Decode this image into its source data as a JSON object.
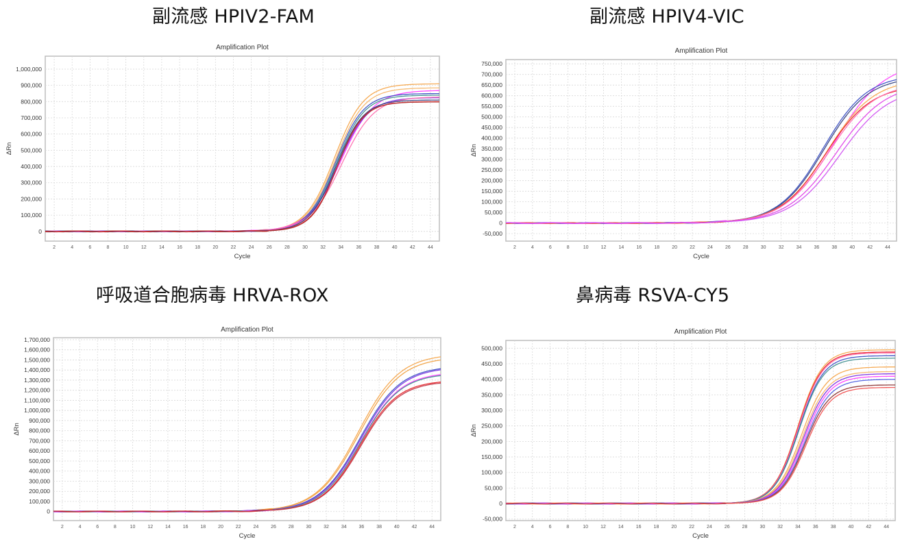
{
  "headings": [
    {
      "text": "副流感 HPIV2-FAM"
    },
    {
      "text": "副流感 HPIV4-VIC"
    },
    {
      "text": "呼吸道合胞病毒 HRVA-ROX"
    },
    {
      "text": "鼻病毒 RSVA-CY5"
    }
  ],
  "colors": {
    "grid": "#d8d8d8",
    "frame": "#bdbdbd",
    "orange": "#f5a54a",
    "blue": "#3b4fc4",
    "navy": "#34417f",
    "violet": "#7a2fe0",
    "magenta": "#ff40ff",
    "pink": "#ff6fb0",
    "red": "#e8262a",
    "darkred": "#b03030",
    "teal": "#3f8f8f"
  },
  "chart_data": [
    {
      "id": "hpiv2-fam",
      "type": "line",
      "heading": "副流感 HPIV2-FAM",
      "title": "Amplification Plot",
      "xlabel": "Cycle",
      "ylabel": "ΔRn",
      "xlim": [
        1,
        45
      ],
      "ylim": [
        -60000,
        1080000
      ],
      "xticks": [
        2,
        4,
        6,
        8,
        10,
        12,
        14,
        16,
        18,
        20,
        22,
        24,
        26,
        28,
        30,
        32,
        34,
        36,
        38,
        40,
        42,
        44
      ],
      "yticks": [
        0,
        100000,
        200000,
        300000,
        400000,
        500000,
        600000,
        700000,
        800000,
        900000,
        1000000
      ],
      "ytick_labels": [
        "0",
        "100,000",
        "200,000",
        "300,000",
        "400,000",
        "500,000",
        "600,000",
        "700,000",
        "800,000",
        "900,000",
        "1,000,000"
      ],
      "grid": true,
      "legend": null,
      "series": [
        {
          "name": "orange-1",
          "color": "#f5a54a",
          "plateau": 910000,
          "ct": 33.3,
          "k": 0.62
        },
        {
          "name": "orange-2",
          "color": "#f7b66a",
          "plateau": 885000,
          "ct": 33.4,
          "k": 0.62
        },
        {
          "name": "magenta-1",
          "color": "#ff40ff",
          "plateau": 870000,
          "ct": 34.0,
          "k": 0.55
        },
        {
          "name": "blue-1",
          "color": "#3b4fc4",
          "plateau": 850000,
          "ct": 33.4,
          "k": 0.64
        },
        {
          "name": "teal-1",
          "color": "#3f8f8f",
          "plateau": 840000,
          "ct": 33.5,
          "k": 0.64
        },
        {
          "name": "violet-1",
          "color": "#7a2fe0",
          "plateau": 825000,
          "ct": 33.7,
          "k": 0.6
        },
        {
          "name": "pink-1",
          "color": "#ff6fb0",
          "plateau": 830000,
          "ct": 34.1,
          "k": 0.55
        },
        {
          "name": "navy-1",
          "color": "#34417f",
          "plateau": 810000,
          "ct": 33.5,
          "k": 0.66
        },
        {
          "name": "red-1",
          "color": "#e8262a",
          "plateau": 800000,
          "ct": 33.6,
          "k": 0.68
        },
        {
          "name": "darkred-1",
          "color": "#b03030",
          "plateau": 798000,
          "ct": 33.6,
          "k": 0.7
        }
      ]
    },
    {
      "id": "hpiv4-vic",
      "type": "line",
      "heading": "副流感 HPIV4-VIC",
      "title": "Amplification Plot",
      "xlabel": "Cycle",
      "ylabel": "ΔRn",
      "xlim": [
        1,
        45
      ],
      "ylim": [
        -85000,
        770000
      ],
      "xticks": [
        2,
        4,
        6,
        8,
        10,
        12,
        14,
        16,
        18,
        20,
        22,
        24,
        26,
        28,
        30,
        32,
        34,
        36,
        38,
        40,
        42,
        44
      ],
      "yticks": [
        -50000,
        0,
        50000,
        100000,
        150000,
        200000,
        250000,
        300000,
        350000,
        400000,
        450000,
        500000,
        550000,
        600000,
        650000,
        700000,
        750000
      ],
      "ytick_labels": [
        "-50,000",
        "0",
        "50,000",
        "100,000",
        "150,000",
        "200,000",
        "250,000",
        "300,000",
        "350,000",
        "400,000",
        "450,000",
        "500,000",
        "550,000",
        "600,000",
        "650,000",
        "700,000",
        "750,000"
      ],
      "grid": true,
      "legend": null,
      "series": [
        {
          "name": "magenta-1",
          "color": "#ff40ff",
          "plateau": 760000,
          "ct": 38.0,
          "k": 0.36
        },
        {
          "name": "blue-1",
          "color": "#3b4fc4",
          "plateau": 700000,
          "ct": 36.7,
          "k": 0.4
        },
        {
          "name": "navy-1",
          "color": "#34417f",
          "plateau": 690000,
          "ct": 36.8,
          "k": 0.4
        },
        {
          "name": "orange-1",
          "color": "#f5a54a",
          "plateau": 680000,
          "ct": 37.2,
          "k": 0.38
        },
        {
          "name": "red-1",
          "color": "#e8262a",
          "plateau": 650000,
          "ct": 37.0,
          "k": 0.39
        },
        {
          "name": "pink-1",
          "color": "#ff6fb0",
          "plateau": 660000,
          "ct": 37.3,
          "k": 0.38
        },
        {
          "name": "magenta-2",
          "color": "#e040e8",
          "plateau": 660000,
          "ct": 38.2,
          "k": 0.36
        },
        {
          "name": "magenta-3",
          "color": "#d050f0",
          "plateau": 640000,
          "ct": 38.6,
          "k": 0.36
        }
      ]
    },
    {
      "id": "hrva-rox",
      "type": "line",
      "heading": "呼吸道合胞病毒 HRVA-ROX",
      "title": "Amplification Plot",
      "xlabel": "Cycle",
      "ylabel": "ΔRn",
      "xlim": [
        1,
        45
      ],
      "ylim": [
        -90000,
        1720000
      ],
      "xticks": [
        2,
        4,
        6,
        8,
        10,
        12,
        14,
        16,
        18,
        20,
        22,
        24,
        26,
        28,
        30,
        32,
        34,
        36,
        38,
        40,
        42,
        44
      ],
      "yticks": [
        0,
        100000,
        200000,
        300000,
        400000,
        500000,
        600000,
        700000,
        800000,
        900000,
        1000000,
        1100000,
        1200000,
        1300000,
        1400000,
        1500000,
        1600000,
        1700000
      ],
      "ytick_labels": [
        "0",
        "100,000",
        "200,000",
        "300,000",
        "400,000",
        "500,000",
        "600,000",
        "700,000",
        "800,000",
        "900,000",
        "1,000,000",
        "1,100,000",
        "1,200,000",
        "1,300,000",
        "1,400,000",
        "1,500,000",
        "1,600,000",
        "1,700,000"
      ],
      "grid": true,
      "legend": null,
      "series": [
        {
          "name": "orange-1",
          "color": "#f5a54a",
          "plateau": 1560000,
          "ct": 35.6,
          "k": 0.42
        },
        {
          "name": "orange-2",
          "color": "#f0a040",
          "plateau": 1530000,
          "ct": 35.7,
          "k": 0.42
        },
        {
          "name": "blue-1",
          "color": "#3b4fc4",
          "plateau": 1440000,
          "ct": 35.8,
          "k": 0.43
        },
        {
          "name": "violet-1",
          "color": "#7a2fe0",
          "plateau": 1430000,
          "ct": 35.9,
          "k": 0.43
        },
        {
          "name": "magenta-1",
          "color": "#ff40ff",
          "plateau": 1380000,
          "ct": 35.9,
          "k": 0.44
        },
        {
          "name": "teal-1",
          "color": "#3f8f8f",
          "plateau": 1370000,
          "ct": 35.9,
          "k": 0.44
        },
        {
          "name": "red-1",
          "color": "#e8262a",
          "plateau": 1300000,
          "ct": 35.8,
          "k": 0.46
        },
        {
          "name": "darkred-1",
          "color": "#c03040",
          "plateau": 1290000,
          "ct": 35.9,
          "k": 0.46
        }
      ]
    },
    {
      "id": "rsva-cy5",
      "type": "line",
      "heading": "鼻病毒 RSVA-CY5",
      "title": "Amplification Plot",
      "xlabel": "Cycle",
      "ylabel": "ΔRn",
      "xlim": [
        1,
        45
      ],
      "ylim": [
        -55000,
        525000
      ],
      "xticks": [
        2,
        4,
        6,
        8,
        10,
        12,
        14,
        16,
        18,
        20,
        22,
        24,
        26,
        28,
        30,
        32,
        34,
        36,
        38,
        40,
        42,
        44
      ],
      "yticks": [
        -50000,
        0,
        50000,
        100000,
        150000,
        200000,
        250000,
        300000,
        350000,
        400000,
        450000,
        500000
      ],
      "ytick_labels": [
        "-50,000",
        "0",
        "50,000",
        "100,000",
        "150,000",
        "200,000",
        "250,000",
        "300,000",
        "350,000",
        "400,000",
        "450,000",
        "500,000"
      ],
      "grid": true,
      "legend": null,
      "series": [
        {
          "name": "orange-1",
          "color": "#f5a54a",
          "plateau": 495000,
          "ct": 34.0,
          "k": 0.72
        },
        {
          "name": "red-1",
          "color": "#e8262a",
          "plateau": 488000,
          "ct": 34.0,
          "k": 0.72
        },
        {
          "name": "pink-1",
          "color": "#ff6fb0",
          "plateau": 485000,
          "ct": 34.05,
          "k": 0.72
        },
        {
          "name": "blue-1",
          "color": "#3b4fc4",
          "plateau": 476000,
          "ct": 34.1,
          "k": 0.72
        },
        {
          "name": "teal-1",
          "color": "#3f8f8f",
          "plateau": 468000,
          "ct": 34.1,
          "k": 0.72
        },
        {
          "name": "orange-2",
          "color": "#f5a54a",
          "plateau": 440000,
          "ct": 34.4,
          "k": 0.7
        },
        {
          "name": "orange-3",
          "color": "#f7b66a",
          "plateau": 425000,
          "ct": 34.5,
          "k": 0.7
        },
        {
          "name": "violet-1",
          "color": "#7a2fe0",
          "plateau": 418000,
          "ct": 34.6,
          "k": 0.7
        },
        {
          "name": "magenta-1",
          "color": "#ff40ff",
          "plateau": 410000,
          "ct": 34.7,
          "k": 0.7
        },
        {
          "name": "blue-2",
          "color": "#5060e0",
          "plateau": 400000,
          "ct": 34.8,
          "k": 0.7
        },
        {
          "name": "darkred-1",
          "color": "#8a3030",
          "plateau": 382000,
          "ct": 34.8,
          "k": 0.72
        },
        {
          "name": "red-2",
          "color": "#f05050",
          "plateau": 374000,
          "ct": 34.9,
          "k": 0.72
        }
      ]
    }
  ]
}
